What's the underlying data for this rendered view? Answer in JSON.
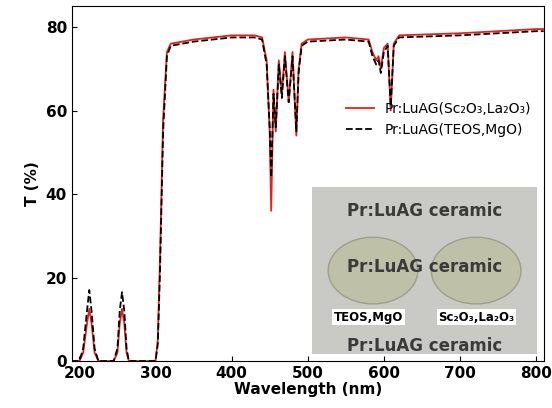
{
  "chart_data": {
    "type": "line",
    "x_label": "Wavelength (nm)",
    "y_label": "T (%)",
    "x": [
      190,
      200,
      205,
      210,
      213,
      216,
      220,
      225,
      245,
      250,
      253,
      256,
      259,
      262,
      265,
      300,
      303,
      306,
      310,
      315,
      320,
      350,
      400,
      430,
      440,
      446,
      450,
      452,
      455,
      458,
      462,
      466,
      470,
      475,
      480,
      485,
      488,
      492,
      500,
      550,
      580,
      585,
      590,
      593,
      596,
      600,
      605,
      609,
      613,
      620,
      700,
      800,
      810
    ],
    "series": [
      {
        "name": "Pr:LuAG(Sc₂O₃,La₂O₃)",
        "color": "#e8201a",
        "line_style": "solid",
        "values": [
          0,
          0,
          2,
          9,
          12.5,
          9,
          2,
          0,
          0,
          2,
          9,
          12.5,
          9,
          2,
          0,
          0,
          5,
          25,
          58,
          74,
          76,
          77,
          78,
          78,
          77.5,
          72,
          55,
          36,
          65,
          55,
          72,
          64,
          74,
          62,
          74,
          54,
          70,
          76,
          77,
          77.5,
          77,
          74,
          72,
          73,
          70,
          75,
          76,
          60,
          76,
          78,
          78.5,
          79.5,
          79.5
        ]
      },
      {
        "name": "Pr:LuAG(TEOS,MgO)",
        "color": "#000000",
        "line_style": "dashed",
        "values": [
          0,
          0,
          3,
          12,
          17,
          12,
          3,
          0,
          0,
          3,
          12,
          16.5,
          12,
          3,
          0,
          0,
          4,
          22,
          55,
          73,
          75.5,
          76.5,
          77.5,
          77.5,
          77,
          71,
          56,
          44,
          64,
          56,
          71,
          63,
          73,
          62,
          73,
          55,
          69,
          75.5,
          76.5,
          77,
          76.5,
          73,
          71,
          72,
          69,
          74,
          75.5,
          61,
          75.5,
          77.5,
          78,
          79,
          79
        ]
      }
    ],
    "xlim": [
      190,
      810
    ],
    "ylim": [
      0,
      85
    ],
    "xticks": [
      200,
      300,
      400,
      500,
      600,
      700,
      800
    ],
    "yticks": [
      0,
      20,
      40,
      60,
      80
    ],
    "legend": "center right",
    "inset": {
      "texts": [
        "Pr:LuAG ceramic",
        "Pr:LuAG ceramic",
        "Pr:LuAG ceramic"
      ],
      "sample_labels": [
        "TEOS,MgO",
        "Sc₂O₃,La₂O₃"
      ]
    }
  }
}
